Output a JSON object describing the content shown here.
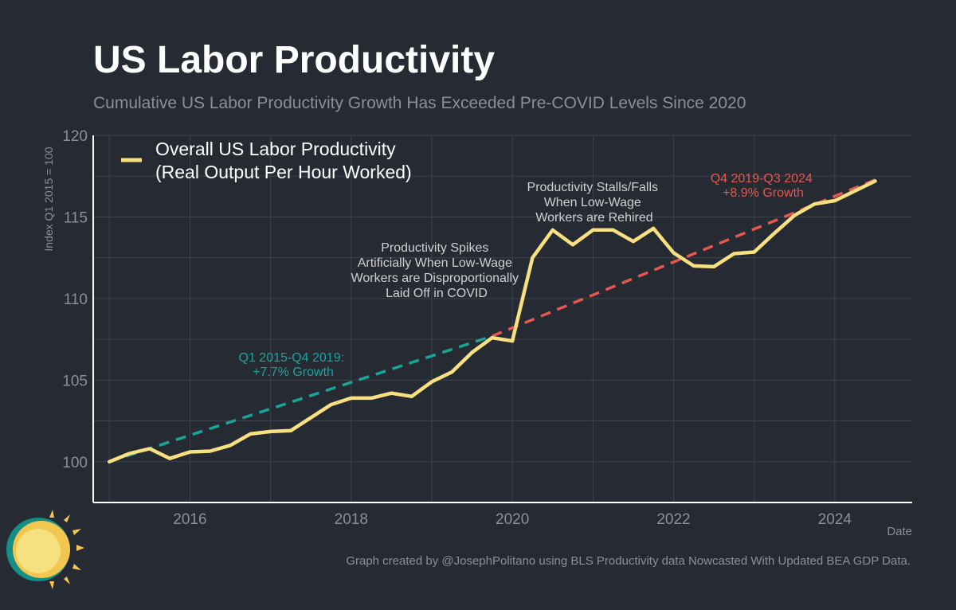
{
  "title": "US Labor Productivity",
  "subtitle": "Cumulative US Labor Productivity Growth Has Exceeded Pre-COVID Levels Since 2020",
  "caption": "Graph created by @JosephPolitano using BLS Productivity data Nowcasted With Updated BEA GDP Data.",
  "colors": {
    "background": "#252a33",
    "series": "#f7e07f",
    "pre_trend": "#1aa59a",
    "post_trend": "#e5574f",
    "grid": "#3d434d",
    "text_muted": "#8a8f98",
    "annotation": "#d0d0d0"
  },
  "chart_data": {
    "type": "line",
    "xlabel": "Date",
    "ylabel": "Index Q1 2015 = 100",
    "xlim": [
      2014.8,
      2024.96
    ],
    "ylim": [
      97.5,
      120
    ],
    "x_ticks": [
      2016,
      2018,
      2020,
      2022,
      2024
    ],
    "y_ticks": [
      100,
      105,
      110,
      115,
      120
    ],
    "grid": true,
    "legend_position": "top-left",
    "legend": [
      "Overall US Labor Productivity",
      "(Real Output Per Hour Worked)"
    ],
    "series": [
      {
        "name": "Overall US Labor Productivity (Real Output Per Hour Worked)",
        "x": [
          2015.0,
          2015.25,
          2015.5,
          2015.75,
          2016.0,
          2016.25,
          2016.5,
          2016.75,
          2017.0,
          2017.25,
          2017.5,
          2017.75,
          2018.0,
          2018.25,
          2018.5,
          2018.75,
          2019.0,
          2019.25,
          2019.5,
          2019.75,
          2020.0,
          2020.25,
          2020.5,
          2020.75,
          2021.0,
          2021.25,
          2021.5,
          2021.75,
          2022.0,
          2022.25,
          2022.5,
          2022.75,
          2023.0,
          2023.25,
          2023.5,
          2023.75,
          2024.0,
          2024.25,
          2024.5
        ],
        "values": [
          100.0,
          100.5,
          100.8,
          100.2,
          100.6,
          100.65,
          101.0,
          101.7,
          101.85,
          101.9,
          102.7,
          103.5,
          103.9,
          103.9,
          104.2,
          104.0,
          104.9,
          105.5,
          106.7,
          107.6,
          107.4,
          112.5,
          114.2,
          113.3,
          114.2,
          114.2,
          113.5,
          114.3,
          112.8,
          112.0,
          111.95,
          112.75,
          112.85,
          114.0,
          115.1,
          115.8,
          116.0,
          116.6,
          117.2
        ]
      }
    ],
    "trend_lines": [
      {
        "label": "Q1 2015-Q4 2019: +7.7% Growth",
        "x": [
          2015.0,
          2019.75
        ],
        "values": [
          100.0,
          107.7
        ]
      },
      {
        "label": "Q4 2019-Q3 2024 +8.9% Growth",
        "x": [
          2019.75,
          2024.5
        ],
        "values": [
          107.7,
          117.28
        ]
      }
    ],
    "annotations": [
      {
        "lines": [
          "Productivity Spikes",
          "Artificially When Low-Wage",
          "Workers are Disproportionally",
          "Laid Off in COVID"
        ]
      },
      {
        "lines": [
          "Productivity Stalls/Falls",
          "When Low-Wage",
          "Workers are Rehired"
        ]
      },
      {
        "lines": [
          "Q1 2015-Q4 2019:",
          "+7.7% Growth"
        ]
      },
      {
        "lines": [
          "Q4 2019-Q3 2024",
          "+8.9% Growth"
        ]
      }
    ]
  }
}
